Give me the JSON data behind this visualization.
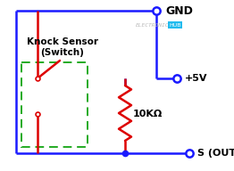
{
  "bg_color": "#ffffff",
  "blue_wire": "#1a1aff",
  "red_wire": "#dd0000",
  "green_dashed": "#22aa22",
  "node_fill": "#ffffff",
  "title_text": "Knock Sensor\n(Switch)",
  "label_gnd": "GND",
  "label_5v": "+5V",
  "label_out": "S (OUT)",
  "label_res": "10KΩ",
  "label_elec": "ELECTRONICS",
  "label_hub": "HUB",
  "hub_bg": "#22bbee",
  "lw": 1.8
}
